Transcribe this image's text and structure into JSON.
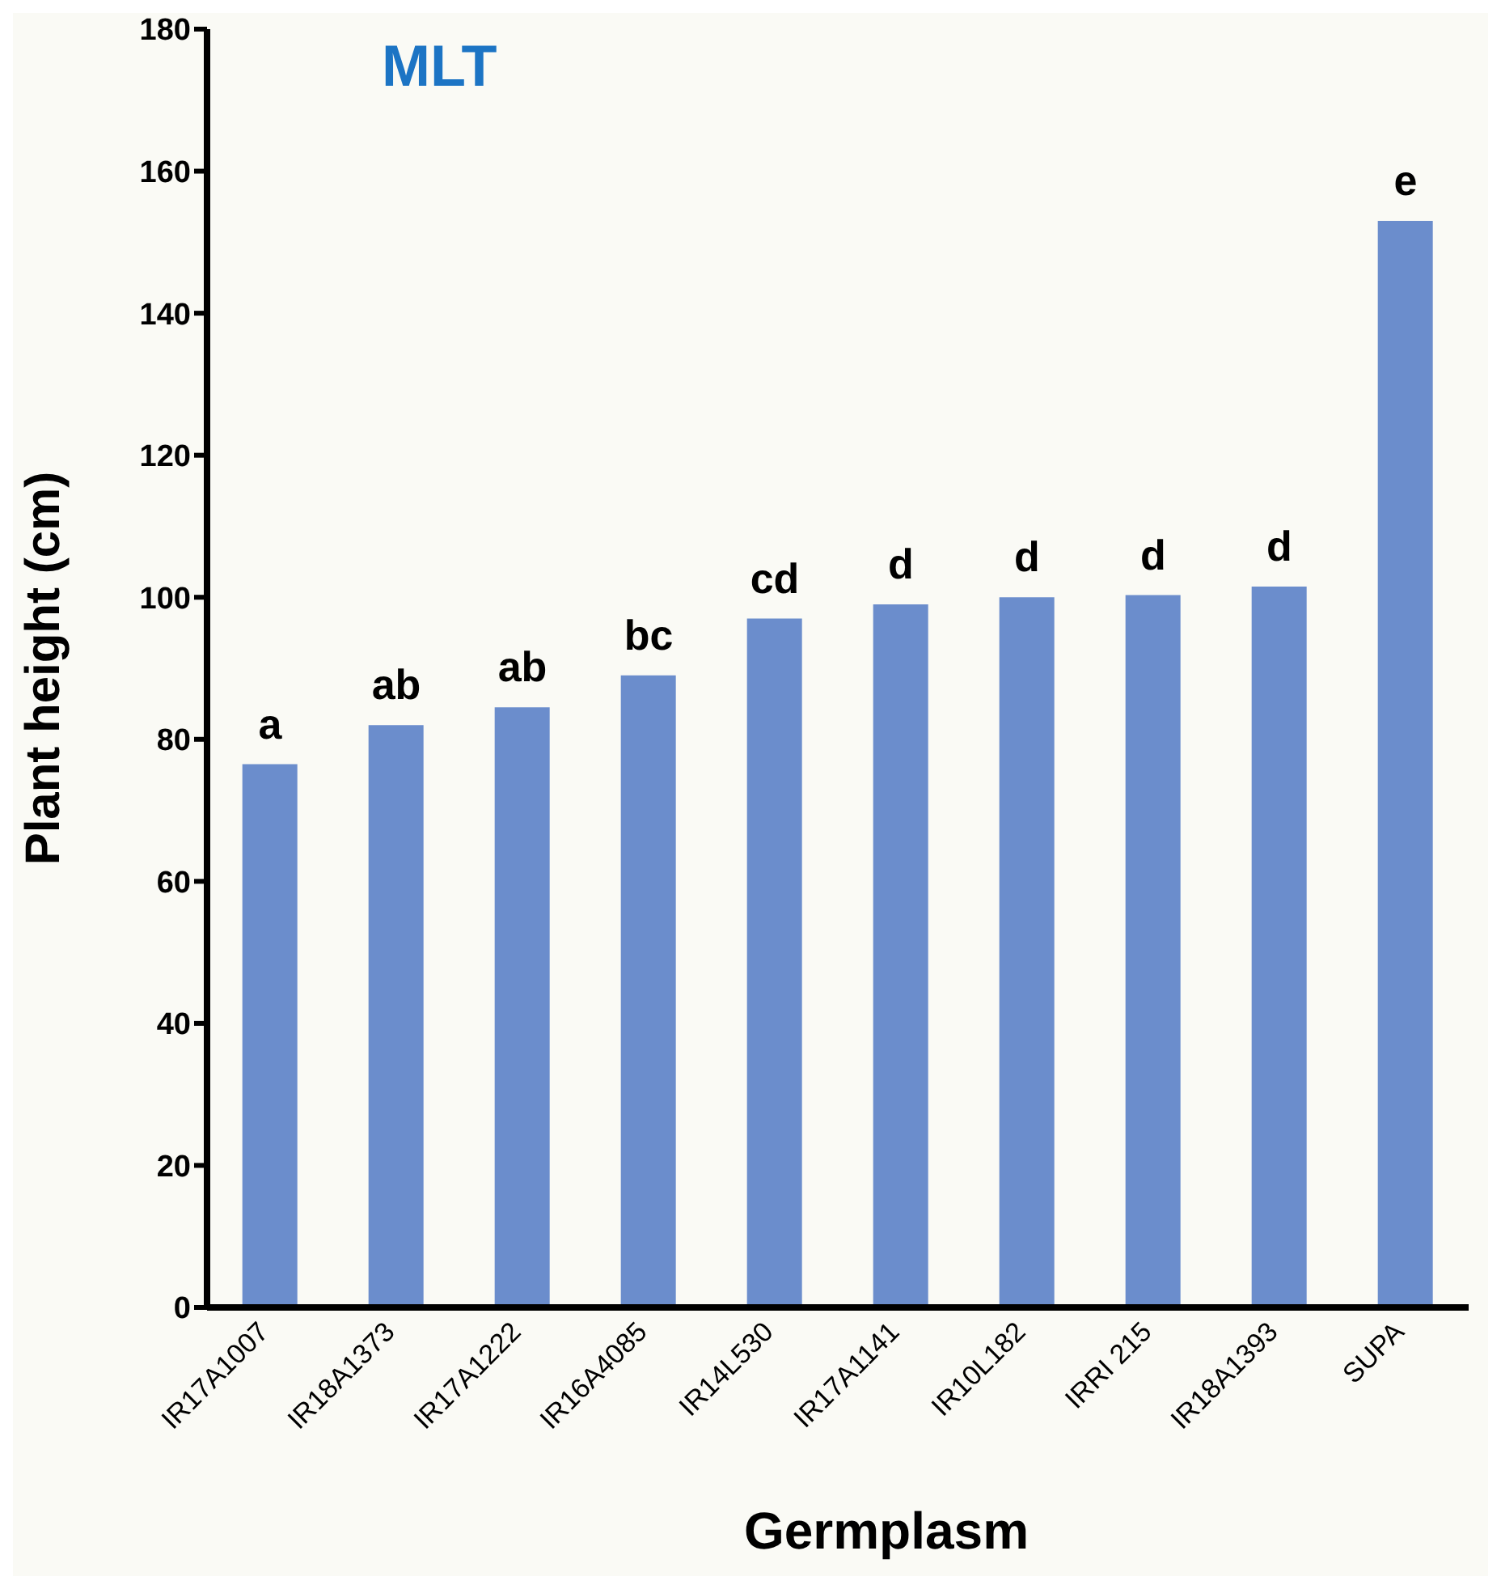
{
  "chart_data": {
    "type": "bar",
    "title": "MLT",
    "xlabel": "Germplasm",
    "ylabel": "Plant height (cm)",
    "categories": [
      "IR17A1007",
      "IR18A1373",
      "IR17A1222",
      "IR16A4085",
      "IR14L530",
      "IR17A1141",
      "IR10L182",
      "IRRI 215",
      "IR18A1393",
      "SUPA"
    ],
    "values": [
      76.5,
      82,
      84.5,
      89,
      97,
      99,
      100,
      100.3,
      101.5,
      153
    ],
    "color": "#6b8dcc",
    "ylim": [
      0,
      180
    ],
    "yticks": [
      0,
      20,
      40,
      60,
      80,
      100,
      120,
      140,
      160,
      180
    ],
    "grid": false,
    "legend": false,
    "annotations": [
      {
        "text": "a",
        "x": "IR17A1007",
        "y": 76.5
      },
      {
        "text": "ab",
        "x": "IR18A1373",
        "y": 82
      },
      {
        "text": "ab",
        "x": "IR17A1222",
        "y": 84.5
      },
      {
        "text": "bc",
        "x": "IR16A4085",
        "y": 89
      },
      {
        "text": "cd",
        "x": "IR14L530",
        "y": 97
      },
      {
        "text": "d",
        "x": "IR17A1141",
        "y": 99
      },
      {
        "text": "d",
        "x": "IR10L182",
        "y": 100
      },
      {
        "text": "d",
        "x": "IRRI 215",
        "y": 100.3
      },
      {
        "text": "d",
        "x": "IR18A1393",
        "y": 101.5
      },
      {
        "text": "e",
        "x": "SUPA",
        "y": 153
      }
    ]
  }
}
